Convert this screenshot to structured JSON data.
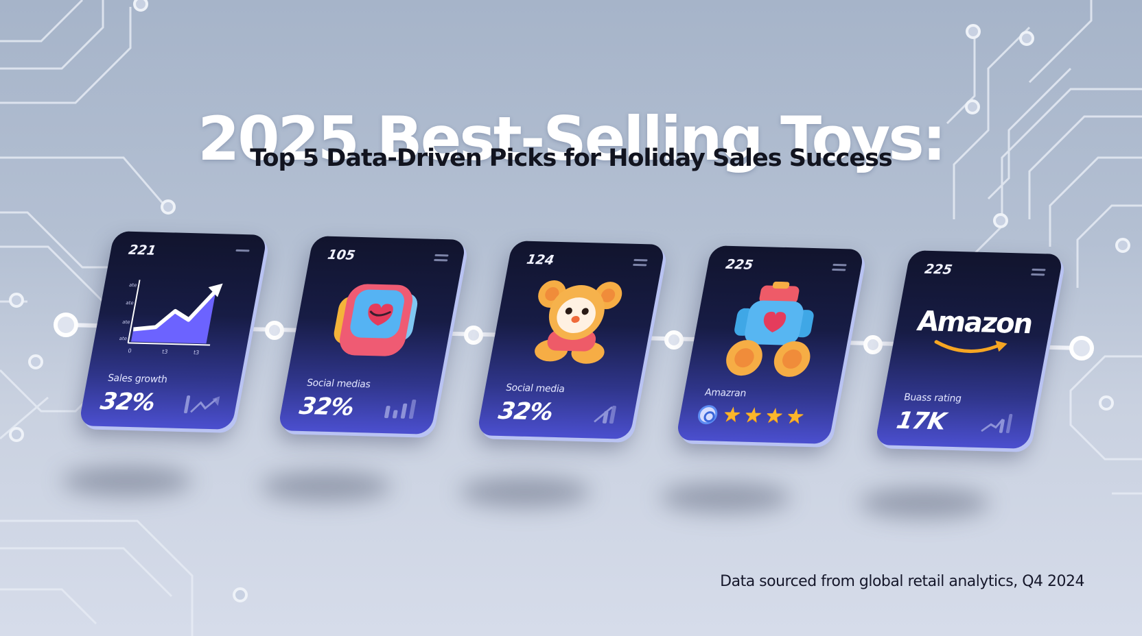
{
  "header": {
    "title": "2025 Best-Selling Toys:",
    "subtitle": "Top 5 Data-Driven Picks for Holiday Sales Success"
  },
  "cards": [
    {
      "number": "221",
      "label": "Sales growth",
      "value": "32%",
      "graphic": "sales-growth-chart-icon"
    },
    {
      "number": "105",
      "label": "Social medias",
      "value": "32%",
      "graphic": "toy-block-heart-icon"
    },
    {
      "number": "124",
      "label": "Social media",
      "value": "32%",
      "graphic": "teddy-bear-icon"
    },
    {
      "number": "225",
      "label": "Amazran",
      "rating_stars": 4,
      "graphic": "toy-robot-heart-icon"
    },
    {
      "number": "225",
      "brand": "Amazon",
      "label": "Buass rating",
      "value": "17K",
      "graphic": "amazon-logo"
    }
  ],
  "chart_axis": {
    "y_ticks": [
      "ate",
      "ate",
      "ate",
      "ate"
    ],
    "x_ticks": [
      "0",
      "t3",
      "t3"
    ]
  },
  "footer": {
    "source": "Data sourced from global retail analytics, Q4 2024"
  },
  "colors": {
    "card_top": "#11142d",
    "card_bottom": "#4b4fcf",
    "accent_purple": "#6c63ff",
    "star": "#fbb62b",
    "title": "#ffffff",
    "subtitle": "#12141f"
  }
}
